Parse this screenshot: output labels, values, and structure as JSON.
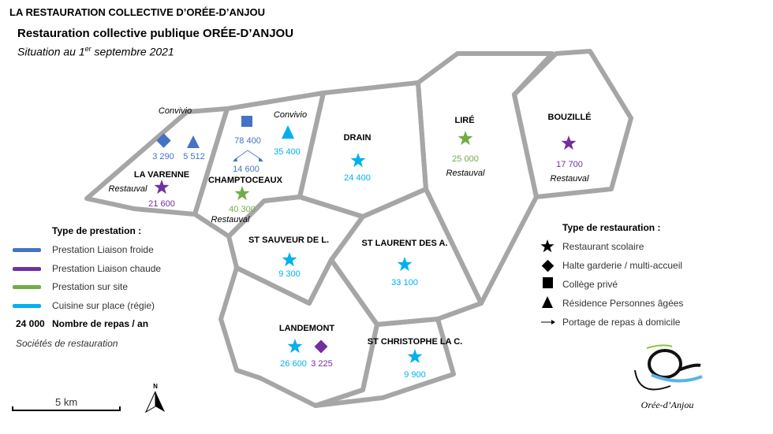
{
  "header": {
    "top": "LA RESTAURATION COLLECTIVE D’ORÉE-D’ANJOU",
    "title": "Restauration collective publique ORÉE-D’ANJOU",
    "subtitle_pre": "Situation au 1",
    "subtitle_sup": "er",
    "subtitle_post": " septembre 2021"
  },
  "colors": {
    "liaison_froide": "#4472c4",
    "liaison_chaude": "#7030a0",
    "sur_site": "#70ad47",
    "cuisine_sur_place": "#00b0f0",
    "border": "#a6a6a6"
  },
  "communes": [
    {
      "name": "LA VARENNE",
      "items": [
        {
          "icon": "diamond",
          "type": "liaison_froide",
          "value": "3 290"
        },
        {
          "icon": "triangle",
          "type": "liaison_froide",
          "value": "5 512",
          "company": "Convivio"
        },
        {
          "icon": "star",
          "type": "liaison_chaude",
          "value": "21 600",
          "company": "Restauval"
        }
      ]
    },
    {
      "name": "CHAMPTOCEAUX",
      "items": [
        {
          "icon": "square",
          "type": "liaison_froide",
          "value": "78 400"
        },
        {
          "icon": "arrow",
          "type": "liaison_froide",
          "value": "14 600"
        },
        {
          "icon": "triangle",
          "type": "cuisine_sur_place",
          "value": "35 400",
          "company": "Convivio"
        },
        {
          "icon": "star",
          "type": "sur_site",
          "value": "40 300",
          "company": "Restauval"
        }
      ]
    },
    {
      "name": "DRAIN",
      "items": [
        {
          "icon": "star",
          "type": "cuisine_sur_place",
          "value": "24 400"
        }
      ]
    },
    {
      "name": "LIRÉ",
      "items": [
        {
          "icon": "star",
          "type": "sur_site",
          "value": "25 000",
          "company": "Restauval"
        }
      ]
    },
    {
      "name": "BOUZILLÉ",
      "items": [
        {
          "icon": "star",
          "type": "liaison_chaude",
          "value": "17 700",
          "company": "Restauval"
        }
      ]
    },
    {
      "name": "ST SAUVEUR DE L.",
      "items": [
        {
          "icon": "star",
          "type": "cuisine_sur_place",
          "value": "9 300"
        }
      ]
    },
    {
      "name": "ST LAURENT DES A.",
      "items": [
        {
          "icon": "star",
          "type": "cuisine_sur_place",
          "value": "33 100"
        }
      ]
    },
    {
      "name": "LANDEMONT",
      "items": [
        {
          "icon": "star",
          "type": "cuisine_sur_place",
          "value": "26 600"
        },
        {
          "icon": "diamond",
          "type": "liaison_chaude",
          "value": "3 225"
        }
      ]
    },
    {
      "name": "ST CHRISTOPHE LA C.",
      "items": [
        {
          "icon": "star",
          "type": "cuisine_sur_place",
          "value": "9 900"
        }
      ]
    }
  ],
  "legend_prestation": {
    "title": "Type de prestation :",
    "items": [
      "Prestation Liaison froide",
      "Prestation Liaison chaude",
      "Prestation sur site",
      "Cuisine sur place (régie)"
    ],
    "count_example": "24 000",
    "count_label": "Nombre de repas / an",
    "companies_label": "Sociétés de restauration"
  },
  "legend_restauration": {
    "title": "Type de restauration :",
    "items": [
      "Restaurant scolaire",
      "Halte garderie / multi-accueil",
      "Collège privé",
      "Résidence Personnes âgées",
      "Portage de repas à domicile"
    ]
  },
  "scale": {
    "label": "5 km"
  },
  "north": "N",
  "logo": "Orée-d’Anjou"
}
